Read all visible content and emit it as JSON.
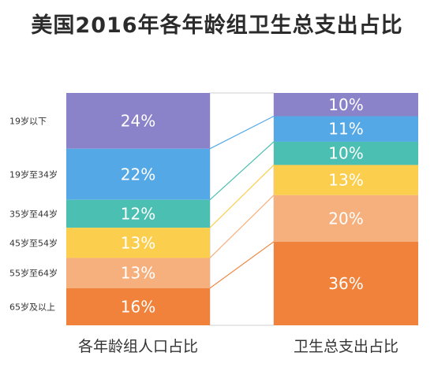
{
  "title": "美国2016年各年龄组卫生总支出占比",
  "chart_data": {
    "type": "bar",
    "title": "美国2016年各年龄组卫生总支出占比",
    "categories": [
      "19岁以下",
      "19岁至34岁",
      "35岁至44岁",
      "45岁至54岁",
      "55岁至64岁",
      "65岁及以上"
    ],
    "series": [
      {
        "name": "各年龄组人口占比",
        "values": [
          24,
          22,
          12,
          13,
          13,
          16
        ],
        "labels": [
          "24%",
          "22%",
          "12%",
          "13%",
          "13%",
          "16%"
        ]
      },
      {
        "name": "卫生总支出占比",
        "values": [
          10,
          11,
          10,
          13,
          20,
          36
        ],
        "labels": [
          "10%",
          "11%",
          "10%",
          "13%",
          "20%",
          "36%"
        ]
      }
    ],
    "xlabels": [
      "各年龄组人口占比",
      "卫生总支出占比"
    ],
    "colors": [
      "#8a83c9",
      "#55a8e6",
      "#4bbfb1",
      "#fbce4e",
      "#f6b07d",
      "#f0823b"
    ],
    "ylim": [
      0,
      100
    ]
  }
}
